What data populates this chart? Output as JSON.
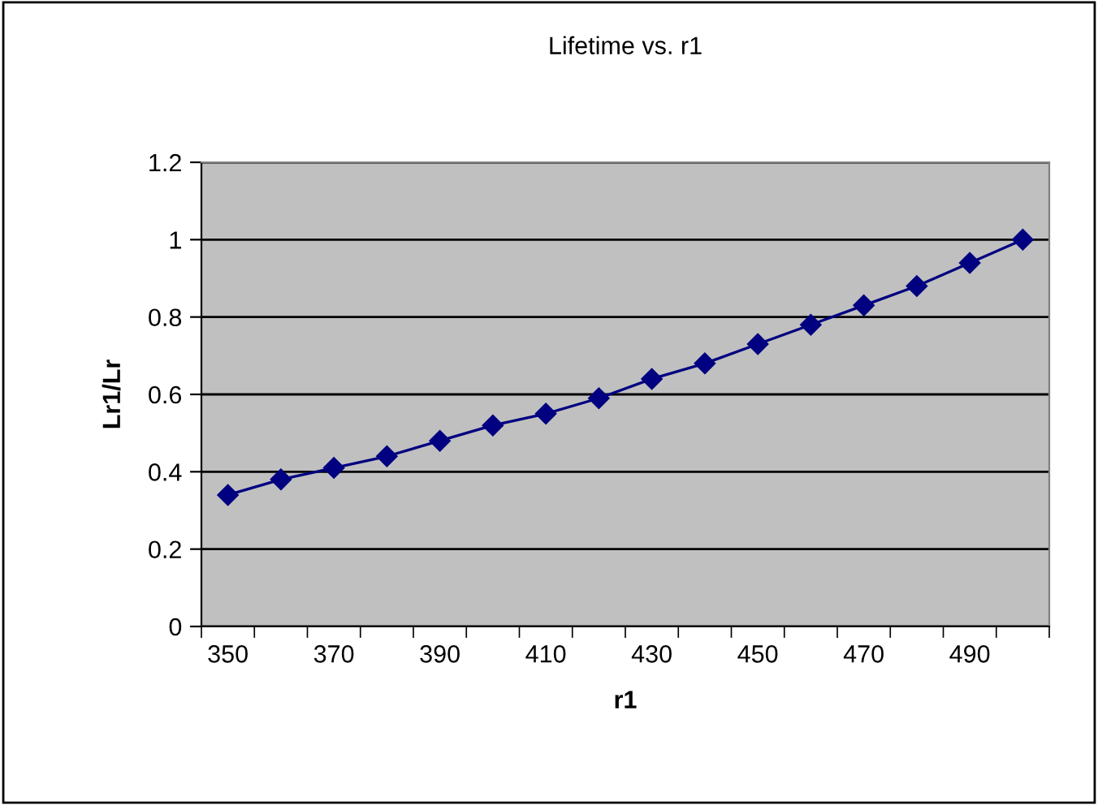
{
  "chart_data": {
    "type": "line",
    "title": "Lifetime vs. r1",
    "xlabel": "r1",
    "ylabel": "Lr1/Lr",
    "categories": [
      "350",
      null,
      "370",
      null,
      "390",
      null,
      "410",
      null,
      "430",
      null,
      "450",
      null,
      "470",
      null,
      "490",
      null
    ],
    "series": [
      {
        "color": "#000080",
        "values": [
          0.34,
          0.38,
          0.41,
          0.44,
          0.48,
          0.52,
          0.55,
          0.59,
          0.64,
          0.68,
          0.73,
          0.78,
          0.83,
          0.88,
          0.94,
          1.0
        ]
      }
    ],
    "ylim": [
      0,
      1.2
    ],
    "yticks": [
      0,
      0.2,
      0.4,
      0.6,
      0.8,
      1,
      1.2
    ],
    "grid": "y",
    "marker": "diamond",
    "line_style": "solid",
    "legend": false
  }
}
